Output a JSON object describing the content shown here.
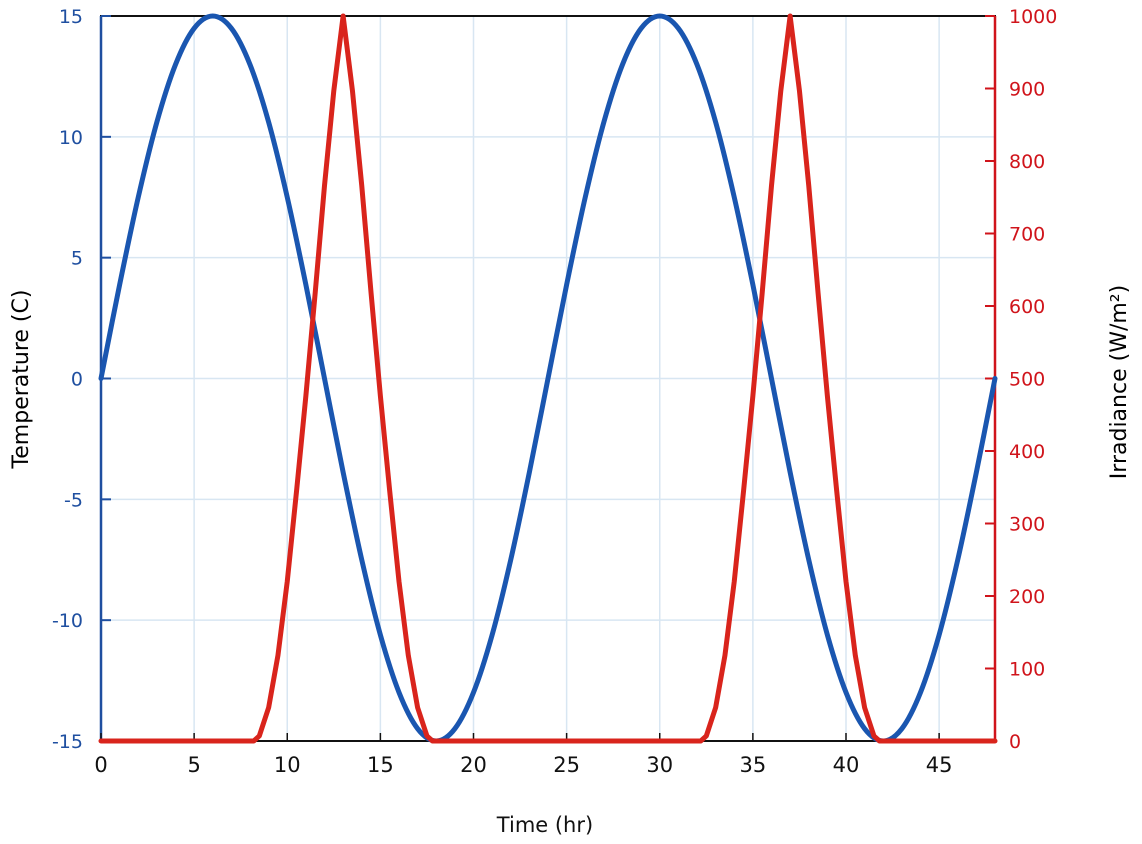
{
  "chart_data": {
    "type": "line",
    "xlabel": "Time (hr)",
    "ylabel_left": "Temperature (C)",
    "ylabel_right": "Irradiance (W/m²)",
    "xlim": [
      0,
      48
    ],
    "ylim_left": [
      -15,
      15
    ],
    "ylim_right": [
      0,
      1000
    ],
    "x_ticks": [
      0,
      5,
      10,
      15,
      20,
      25,
      30,
      35,
      40,
      45
    ],
    "y_left_ticks": [
      -15,
      -10,
      -5,
      0,
      5,
      10,
      15
    ],
    "y_right_ticks": [
      0,
      100,
      200,
      300,
      400,
      500,
      600,
      700,
      800,
      900,
      1000
    ],
    "grid": true,
    "colors": {
      "left_axis": "#1f4fa0",
      "right_axis": "#d0141b",
      "temperature_line": "#1a56b0",
      "irradiance_line": "#d9241c",
      "grid": "#d8e6f2",
      "frame": "#111111"
    },
    "series": [
      {
        "axis": "left",
        "x": [
          0,
          1,
          2,
          3,
          4,
          5,
          6,
          7,
          8,
          9,
          10,
          11,
          12,
          13,
          14,
          15,
          16,
          17,
          18,
          19,
          20,
          21,
          22,
          23,
          24,
          25,
          26,
          27,
          28,
          29,
          30,
          31,
          32,
          33,
          34,
          35,
          36,
          37,
          38,
          39,
          40,
          41,
          42,
          43,
          44,
          45,
          46,
          47,
          48
        ],
        "values": [
          0,
          3.88,
          7.5,
          10.61,
          12.99,
          14.49,
          15.0,
          14.49,
          12.99,
          10.61,
          7.5,
          3.88,
          0,
          -3.88,
          -7.5,
          -10.61,
          -12.99,
          -14.49,
          -15.0,
          -14.49,
          -12.99,
          -10.61,
          -7.5,
          -3.88,
          0,
          3.88,
          7.5,
          10.61,
          12.99,
          14.49,
          15.0,
          14.49,
          12.99,
          10.61,
          7.5,
          3.88,
          0,
          -3.88,
          -7.5,
          -10.61,
          -12.99,
          -14.49,
          -15.0,
          -14.49,
          -12.99,
          -10.61,
          -7.5,
          -3.88,
          0
        ]
      },
      {
        "axis": "right",
        "x": [
          0,
          8.2,
          8.5,
          9,
          9.5,
          10,
          10.5,
          11,
          11.5,
          12,
          12.5,
          13,
          13.5,
          14,
          14.5,
          15,
          15.5,
          16,
          16.5,
          17,
          17.5,
          17.8,
          32.2,
          32.5,
          33,
          33.5,
          34,
          34.5,
          35,
          35.5,
          36,
          36.5,
          37,
          37.5,
          38,
          38.5,
          39,
          39.5,
          40,
          40.5,
          41,
          41.5,
          41.8,
          48
        ],
        "values": [
          0,
          0,
          7,
          46,
          118,
          220,
          345,
          476,
          618,
          766,
          897,
          1000,
          897,
          766,
          618,
          476,
          345,
          220,
          118,
          46,
          7,
          0,
          0,
          7,
          46,
          118,
          220,
          345,
          476,
          618,
          766,
          897,
          1000,
          897,
          766,
          618,
          476,
          345,
          220,
          118,
          46,
          7,
          0,
          0
        ]
      }
    ]
  }
}
